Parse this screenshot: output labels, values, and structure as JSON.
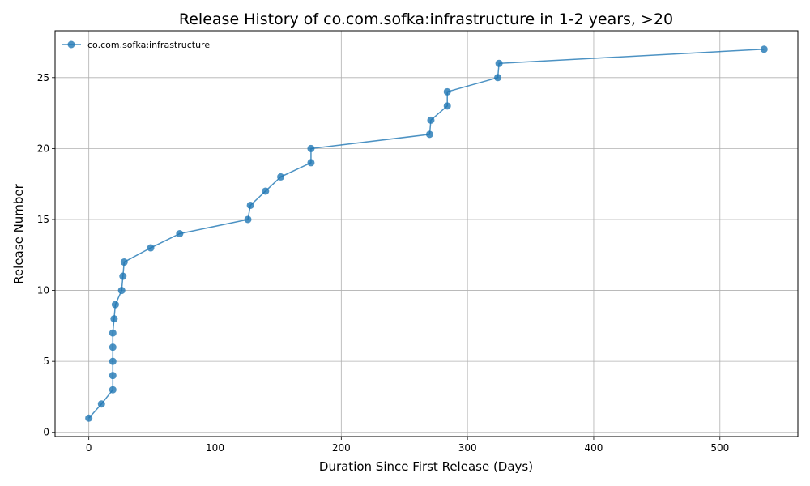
{
  "chart_data": {
    "type": "line",
    "title": "Release History of co.com.sofka:infrastructure in 1-2 years, >20",
    "xlabel": "Duration Since First Release (Days)",
    "ylabel": "Release Number",
    "xlim": [
      -26.75,
      561.75
    ],
    "ylim": [
      -0.3,
      28.3
    ],
    "xticks": [
      0,
      100,
      200,
      300,
      400,
      500
    ],
    "yticks": [
      0,
      5,
      10,
      15,
      20,
      25
    ],
    "grid": true,
    "legend_position": "top-left",
    "series": [
      {
        "name": "co.com.sofka:infrastructure",
        "color": "#1f77b4",
        "marker": "circle",
        "x": [
          0,
          10,
          19,
          19,
          19,
          19,
          19,
          20,
          21,
          26,
          27,
          28,
          49,
          72,
          126,
          128,
          140,
          152,
          176,
          176,
          270,
          271,
          284,
          284,
          324,
          325,
          535
        ],
        "y": [
          1,
          2,
          3,
          4,
          5,
          6,
          7,
          8,
          9,
          10,
          11,
          12,
          13,
          14,
          15,
          16,
          17,
          18,
          19,
          20,
          21,
          22,
          23,
          24,
          25,
          26,
          27
        ]
      }
    ]
  }
}
